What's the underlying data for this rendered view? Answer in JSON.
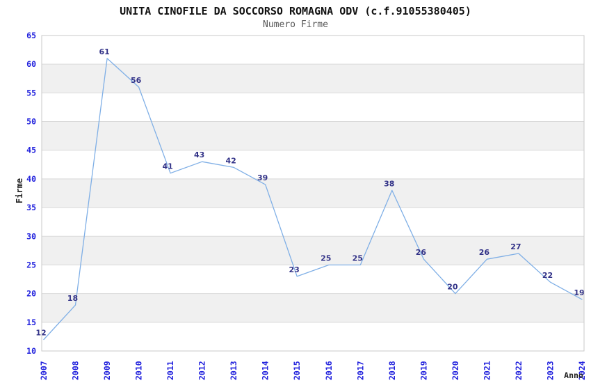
{
  "chart_data": {
    "type": "line",
    "title": "UNITA CINOFILE DA SOCCORSO ROMAGNA ODV (c.f.91055380405)",
    "subtitle": "Numero Firme",
    "xlabel": "Anno",
    "ylabel": "Firme",
    "categories": [
      "2007",
      "2008",
      "2009",
      "2010",
      "2011",
      "2012",
      "2013",
      "2014",
      "2015",
      "2016",
      "2017",
      "2018",
      "2019",
      "2020",
      "2021",
      "2022",
      "2023",
      "2024"
    ],
    "values": [
      12,
      18,
      61,
      56,
      41,
      43,
      42,
      39,
      23,
      25,
      25,
      38,
      26,
      20,
      26,
      27,
      22,
      19
    ],
    "ylim": [
      10,
      65
    ],
    "yticks": [
      10,
      15,
      20,
      25,
      30,
      35,
      40,
      45,
      50,
      55,
      60,
      65
    ],
    "band_fill_ranges": [
      [
        15,
        20
      ],
      [
        25,
        30
      ],
      [
        35,
        40
      ],
      [
        45,
        50
      ],
      [
        55,
        60
      ]
    ],
    "grid": true,
    "legend_position": "none",
    "data_labels_shown": true,
    "colors": {
      "line": "#7fafe6",
      "point_label": "#333388",
      "tick_label": "#2222dd",
      "band": "#f0f0f0",
      "gridline": "#d9d9d9",
      "plot_border": "#c9c9c9",
      "title": "#111111",
      "subtitle": "#555555",
      "axis_title": "#222222",
      "background": "#ffffff"
    }
  }
}
